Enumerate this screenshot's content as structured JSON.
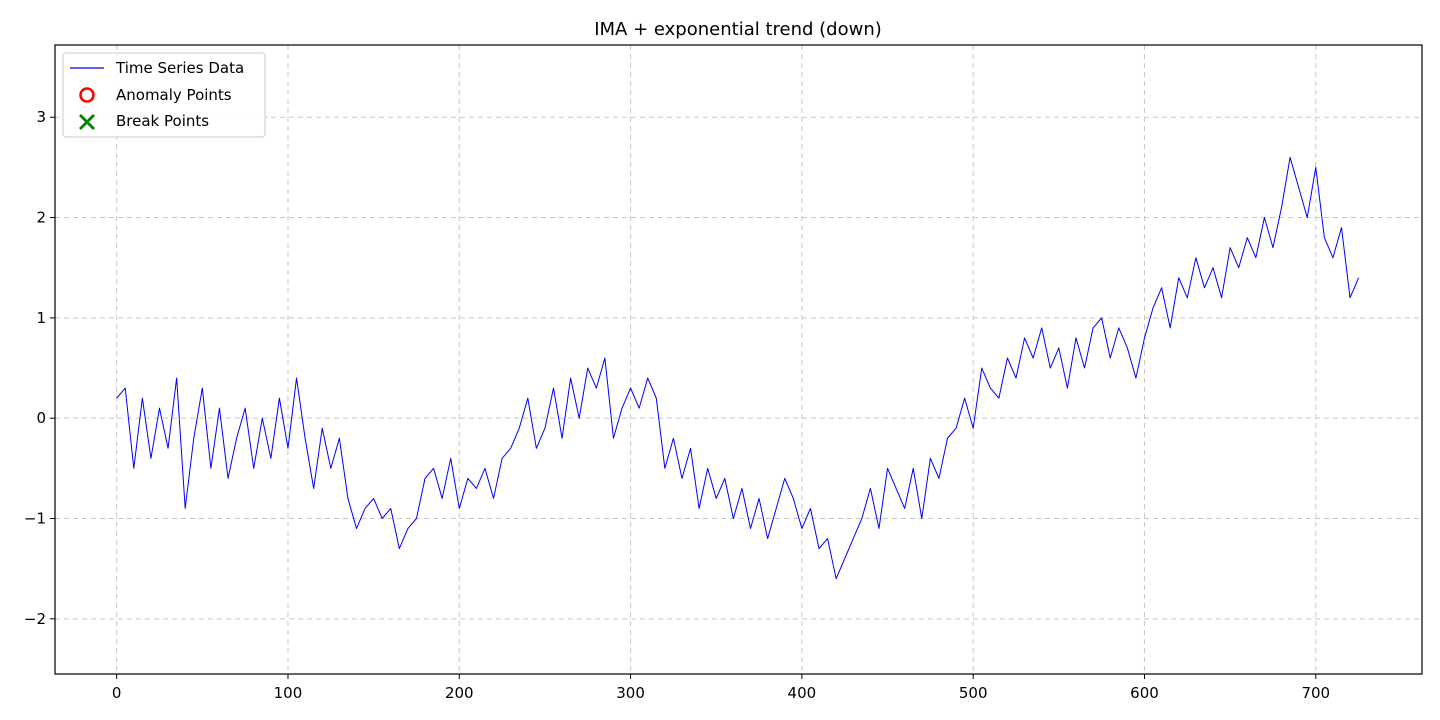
{
  "chart_data": {
    "type": "line",
    "title": "IMA + exponential trend (down)",
    "xlabel": "",
    "ylabel": "",
    "xlim": [
      -36,
      762
    ],
    "ylim": [
      -2.55,
      3.72
    ],
    "xticks": [
      0,
      100,
      200,
      300,
      400,
      500,
      600,
      700
    ],
    "yticks": [
      -2,
      -1,
      0,
      1,
      2,
      3
    ],
    "grid": true,
    "legend_position": "top-left",
    "legend": [
      {
        "label": "Time Series Data",
        "marker": "line",
        "color": "#0000ff"
      },
      {
        "label": "Anomaly Points",
        "marker": "circle",
        "color": "#ff0000"
      },
      {
        "label": "Break Points",
        "marker": "x",
        "color": "#008000"
      }
    ],
    "series": [
      {
        "name": "Time Series Data",
        "color": "#0000ff",
        "x": [
          0,
          5,
          10,
          15,
          20,
          25,
          30,
          35,
          40,
          45,
          50,
          55,
          60,
          65,
          70,
          75,
          80,
          85,
          90,
          95,
          100,
          105,
          110,
          115,
          120,
          125,
          130,
          135,
          140,
          145,
          150,
          155,
          160,
          165,
          170,
          175,
          180,
          185,
          190,
          195,
          200,
          205,
          210,
          215,
          220,
          225,
          230,
          235,
          240,
          245,
          250,
          255,
          260,
          265,
          270,
          275,
          280,
          285,
          290,
          295,
          300,
          305,
          310,
          315,
          320,
          325,
          330,
          335,
          340,
          345,
          350,
          355,
          360,
          365,
          370,
          375,
          380,
          385,
          390,
          395,
          400,
          405,
          410,
          415,
          420,
          425,
          430,
          435,
          440,
          445,
          450,
          455,
          460,
          465,
          470,
          475,
          480,
          485,
          490,
          495,
          500,
          505,
          510,
          515,
          520,
          525,
          530,
          535,
          540,
          545,
          550,
          555,
          560,
          565,
          570,
          575,
          580,
          585,
          590,
          595,
          600,
          605,
          610,
          615,
          620,
          625,
          630,
          635,
          640,
          645,
          650,
          655,
          660,
          665,
          670,
          675,
          680,
          685,
          690,
          695,
          700,
          705,
          710,
          715,
          720,
          725
        ],
        "values": [
          0.2,
          0.3,
          -0.5,
          0.2,
          -0.4,
          0.1,
          -0.3,
          0.4,
          -0.9,
          -0.2,
          0.3,
          -0.5,
          0.1,
          -0.6,
          -0.2,
          0.1,
          -0.5,
          0.0,
          -0.4,
          0.2,
          -0.3,
          0.4,
          -0.2,
          -0.7,
          -0.1,
          -0.5,
          -0.2,
          -0.8,
          -1.1,
          -0.9,
          -0.8,
          -1.0,
          -0.9,
          -1.3,
          -1.1,
          -1.0,
          -0.6,
          -0.5,
          -0.8,
          -0.4,
          -0.9,
          -0.6,
          -0.7,
          -0.5,
          -0.8,
          -0.4,
          -0.3,
          -0.1,
          0.2,
          -0.3,
          -0.1,
          0.3,
          -0.2,
          0.4,
          0.0,
          0.5,
          0.3,
          0.6,
          -0.2,
          0.1,
          0.3,
          0.1,
          0.4,
          0.2,
          -0.5,
          -0.2,
          -0.6,
          -0.3,
          -0.9,
          -0.5,
          -0.8,
          -0.6,
          -1.0,
          -0.7,
          -1.1,
          -0.8,
          -1.2,
          -0.9,
          -0.6,
          -0.8,
          -1.1,
          -0.9,
          -1.3,
          -1.2,
          -1.6,
          -1.4,
          -1.2,
          -1.0,
          -0.7,
          -1.1,
          -0.5,
          -0.7,
          -0.9,
          -0.5,
          -1.0,
          -0.4,
          -0.6,
          -0.2,
          -0.1,
          0.2,
          -0.1,
          0.5,
          0.3,
          0.2,
          0.6,
          0.4,
          0.8,
          0.6,
          0.9,
          0.5,
          0.7,
          0.3,
          0.8,
          0.5,
          0.9,
          1.0,
          0.6,
          0.9,
          0.7,
          0.4,
          0.8,
          1.1,
          1.3,
          0.9,
          1.4,
          1.2,
          1.6,
          1.3,
          1.5,
          1.2,
          1.7,
          1.5,
          1.8,
          1.6,
          2.0,
          1.7,
          2.1,
          2.6,
          2.3,
          2.0,
          2.5,
          1.8,
          1.6,
          1.9,
          1.2,
          1.4
        ]
      }
    ]
  }
}
